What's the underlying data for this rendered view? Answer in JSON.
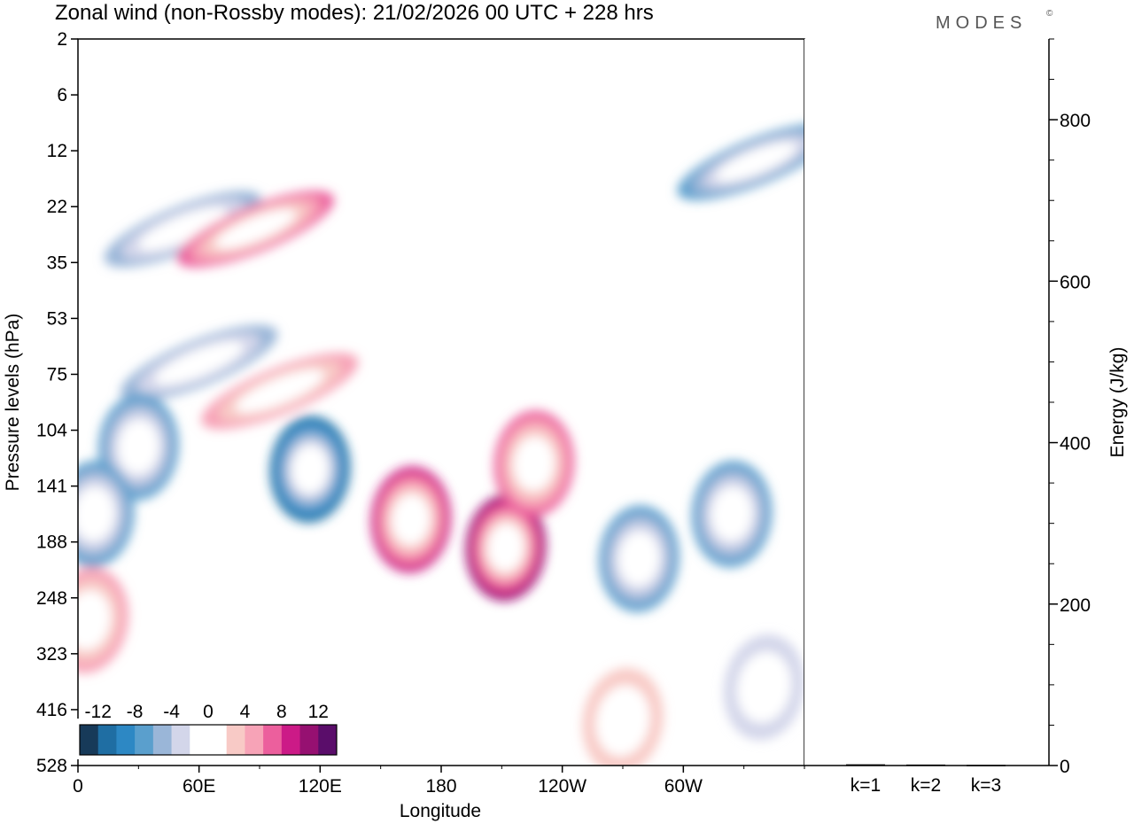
{
  "header": {
    "title": "Zonal wind (non-Rossby modes):  21/02/2026  00 UTC  + 228 hrs",
    "brand": "MODES",
    "brand_mark": "©"
  },
  "chart_data": [
    {
      "type": "heatmap",
      "title": "Zonal wind (non-Rossby modes):  21/02/2026  00 UTC  + 228 hrs",
      "xlabel": "Longitude",
      "ylabel": "Pressure levels (hPa)",
      "x_ticks": [
        "0",
        "60E",
        "120E",
        "180",
        "120W",
        "60W"
      ],
      "x_tick_values": [
        0,
        60,
        120,
        180,
        240,
        300
      ],
      "xlim": [
        0,
        360
      ],
      "y_ticks": [
        "2",
        "6",
        "12",
        "22",
        "35",
        "53",
        "75",
        "104",
        "141",
        "188",
        "248",
        "323",
        "416",
        "528"
      ],
      "colorbar": {
        "labels": [
          "-12",
          "-8",
          "-4",
          "0",
          "4",
          "8",
          "12"
        ],
        "label_values": [
          -12,
          -8,
          -4,
          0,
          4,
          8,
          12
        ],
        "range": [
          -14,
          14
        ],
        "step": 2,
        "colors": [
          "#173a59",
          "#1f6ea3",
          "#2d88c4",
          "#5a9fcd",
          "#9ab6d8",
          "#d3d6ea",
          "#ffffff",
          "#ffffff",
          "#f8cac6",
          "#f7a3b7",
          "#ec5f9d",
          "#cc1a87",
          "#961071",
          "#5a0d6a"
        ]
      },
      "features": [
        {
          "name": "negative-band-upper",
          "lon": 52,
          "level_index": 3.4,
          "value": -6
        },
        {
          "name": "positive-band-upper",
          "lon": 88,
          "level_index": 3.4,
          "value": 7
        },
        {
          "name": "negative-band-mid",
          "lon": 60,
          "level_index": 5.8,
          "value": -6
        },
        {
          "name": "positive-band-mid",
          "lon": 100,
          "level_index": 6.3,
          "value": 5
        },
        {
          "name": "negative-core-104",
          "lon": 115,
          "level_index": 7.7,
          "value": -11
        },
        {
          "name": "negative-core-104-west",
          "lon": 30,
          "level_index": 7.3,
          "value": -8
        },
        {
          "name": "negative-core-141-west",
          "lon": 8,
          "level_index": 8.5,
          "value": -8
        },
        {
          "name": "positive-core-141",
          "lon": 165,
          "level_index": 8.6,
          "value": 10
        },
        {
          "name": "positive-core-188",
          "lon": 212,
          "level_index": 9.1,
          "value": 11
        },
        {
          "name": "positive-core-104-east",
          "lon": 226,
          "level_index": 7.6,
          "value": 8
        },
        {
          "name": "negative-core-east",
          "lon": 278,
          "level_index": 9.3,
          "value": -7
        },
        {
          "name": "negative-core-far-east",
          "lon": 324,
          "level_index": 8.5,
          "value": -8
        },
        {
          "name": "positive-lower-west",
          "lon": 5,
          "level_index": 10.4,
          "value": 6
        },
        {
          "name": "positive-lower-band",
          "lon": 270,
          "level_index": 12.2,
          "value": 3
        },
        {
          "name": "negative-lower-band",
          "lon": 340,
          "level_index": 11.6,
          "value": -3
        },
        {
          "name": "negative-upper-east",
          "lon": 336,
          "level_index": 2.2,
          "value": -7
        }
      ]
    },
    {
      "type": "bar",
      "ylabel": "Energy (J/kg)",
      "categories": [
        "k=1",
        "k=2",
        "k=3"
      ],
      "values": [
        1.5,
        1.2,
        0.8
      ],
      "y_ticks": [
        "0",
        "200",
        "400",
        "600",
        "800"
      ],
      "y_tick_values": [
        0,
        200,
        400,
        600,
        800
      ],
      "ylim": [
        0,
        900
      ]
    }
  ]
}
